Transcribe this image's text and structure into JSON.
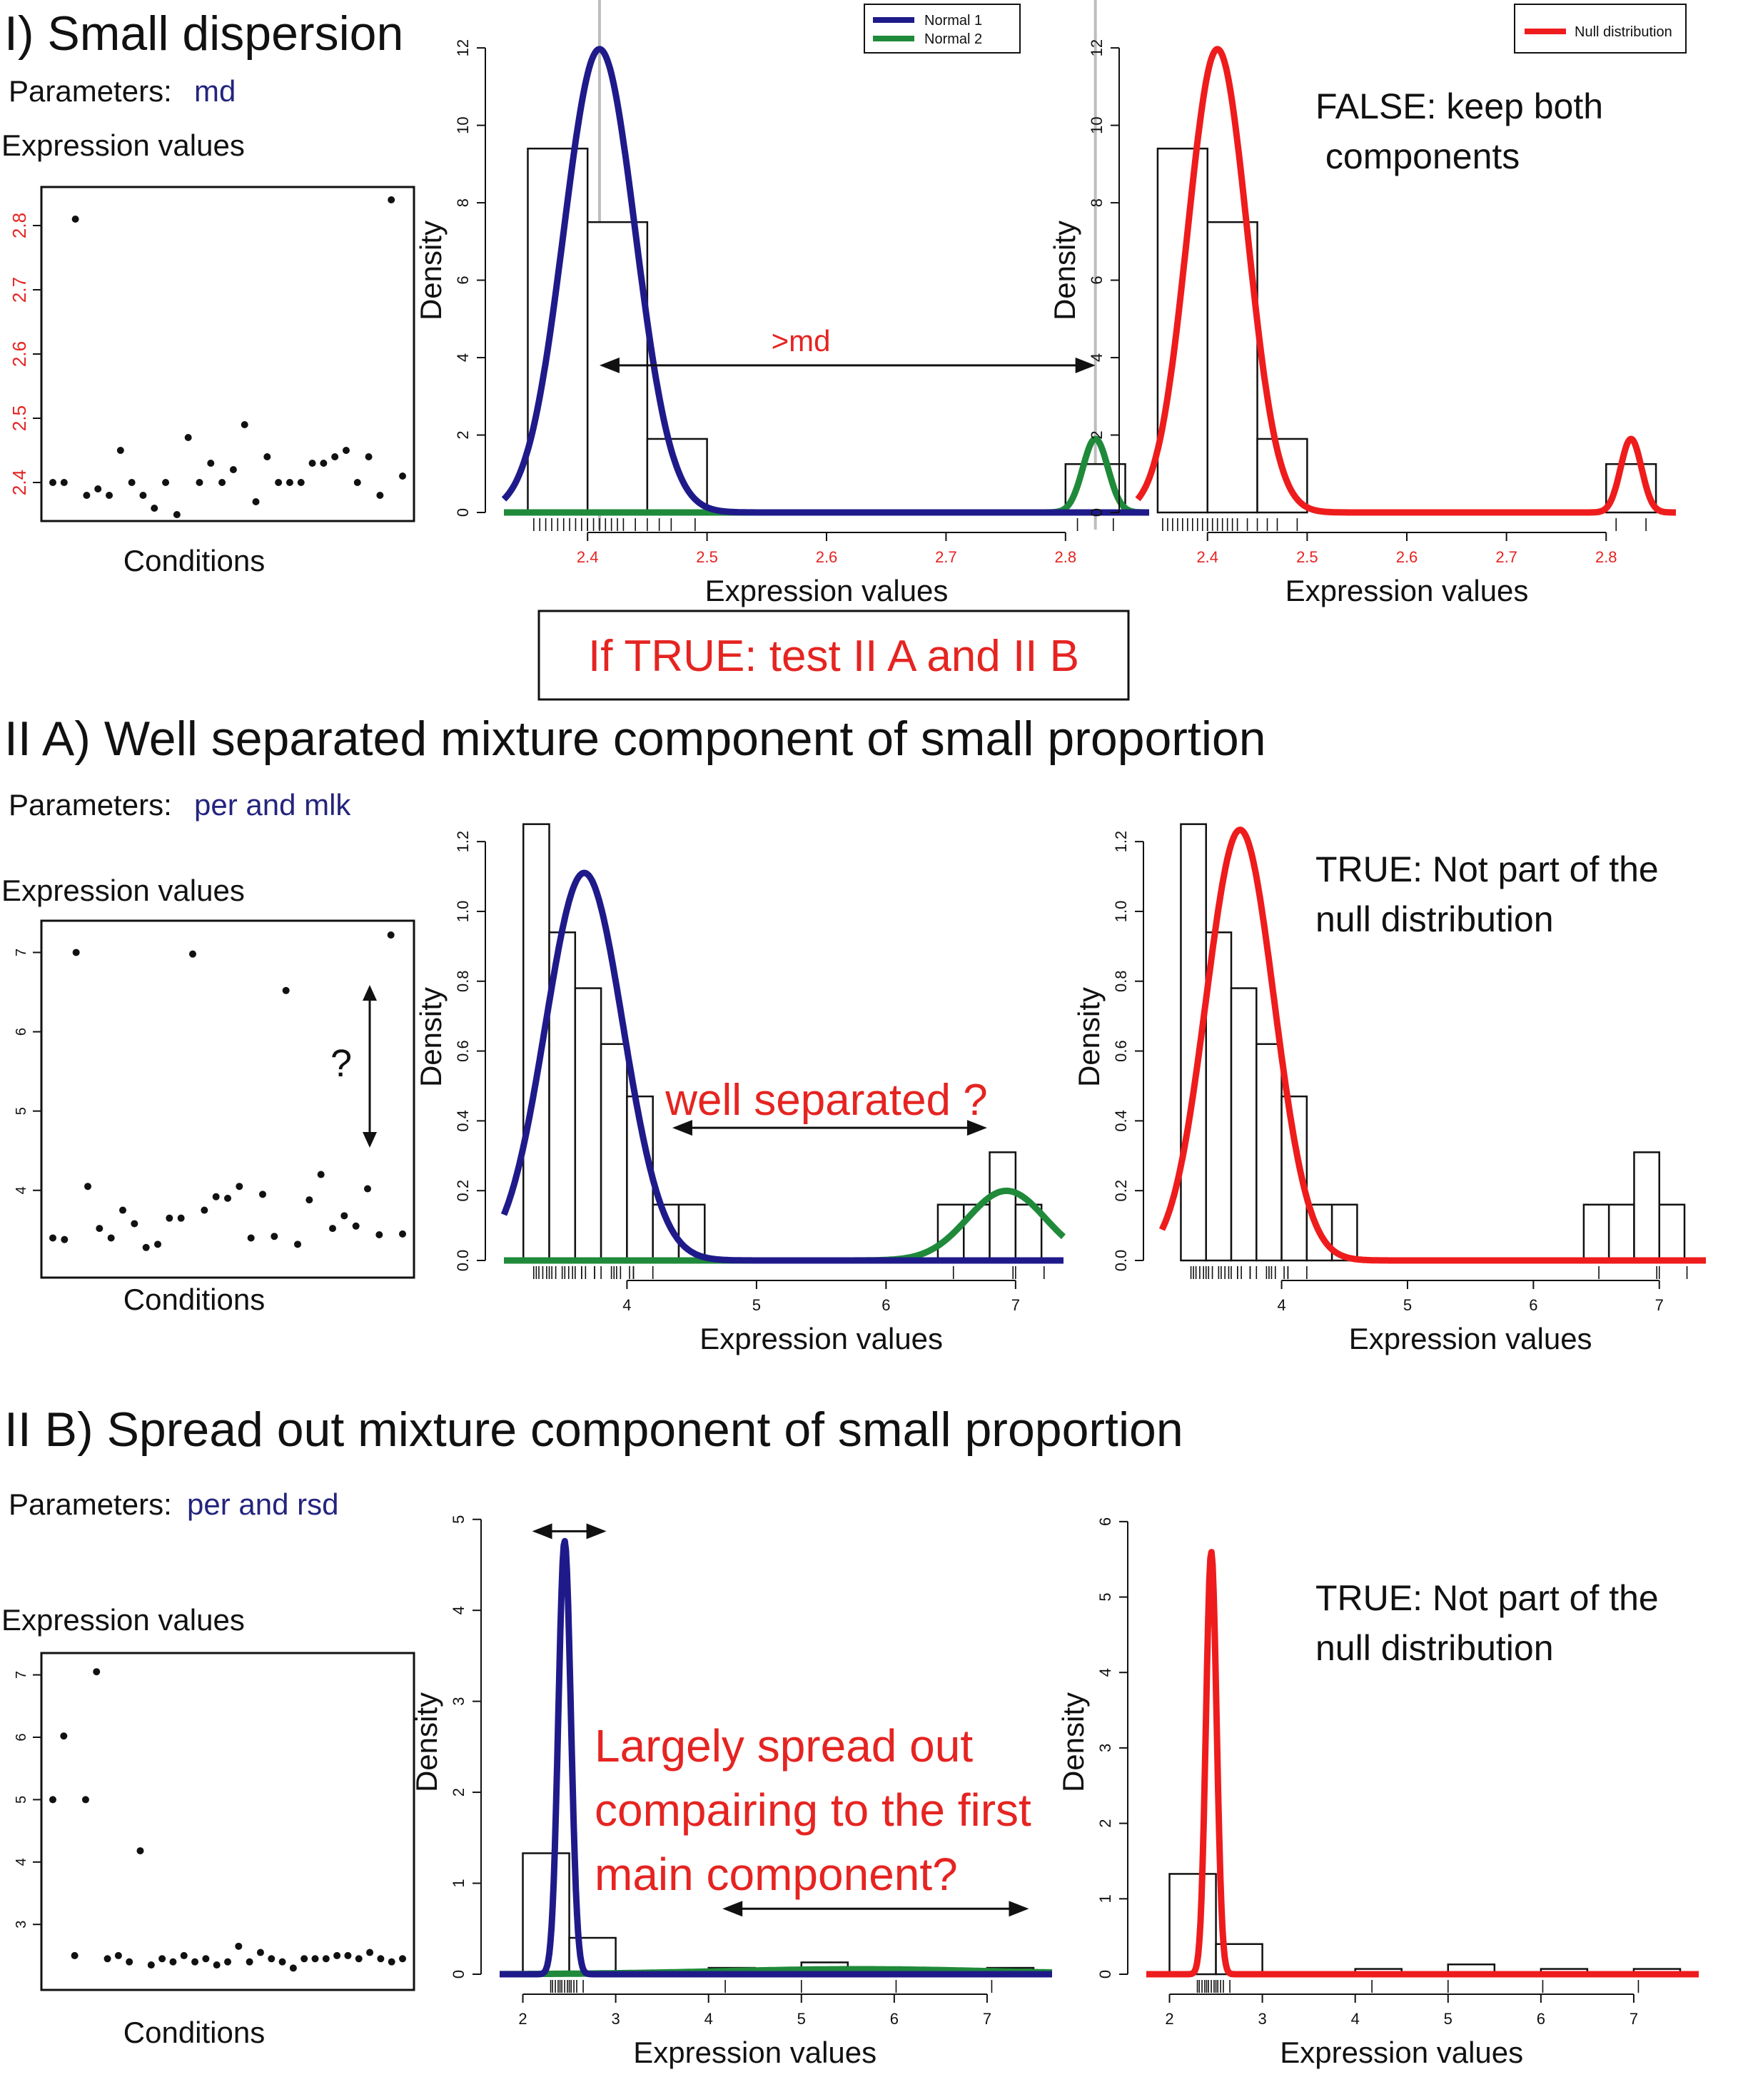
{
  "colors": {
    "normal1": "#1f1a8a",
    "normal2": "#1f8a3a",
    "null": "#ee1c1c",
    "annotation": "#e52421",
    "param_value": "#24247e",
    "axis_red": "#e52421",
    "vline": "#bdbdbd",
    "text": "#111111"
  },
  "section1": {
    "title": "I) Small dispersion",
    "params_label": "Parameters:",
    "params_value": "md",
    "scatter_title": "Expression values",
    "scatter_xlabel": "Conditions",
    "result": [
      "FALSE: keep both",
      " components"
    ],
    "md_label": ">md",
    "test_box": "If TRUE: test II A and II B"
  },
  "section2": {
    "title": "II A) Well separated mixture component of small proportion",
    "params_label": "Parameters:",
    "params_value": "per and mlk",
    "scatter_title": "Expression values",
    "scatter_xlabel": "Conditions",
    "question": "?",
    "well_label": "well separated ?",
    "result": [
      "TRUE: Not part of the",
      "null distribution"
    ]
  },
  "section3": {
    "title": "II B) Spread out mixture component of small proportion",
    "params_label": "Parameters:",
    "params_value": "per and rsd",
    "scatter_title": "Expression values",
    "scatter_xlabel": "Conditions",
    "spread_label": [
      "Largely spread out",
      "compairing to the first",
      "main component?"
    ],
    "result": [
      "TRUE: Not part of the",
      "null distribution"
    ]
  },
  "legend_mix": [
    "Normal 1",
    "Normal 2"
  ],
  "legend_null": [
    "Null distribution"
  ],
  "chart_data": [
    {
      "id": "s1_scatter",
      "type": "scatter",
      "section": 1,
      "xlabel": "Conditions",
      "ylabel": "Expression values",
      "ylim": [
        2.34,
        2.86
      ],
      "yticks": [
        2.4,
        2.5,
        2.6,
        2.7,
        2.8
      ],
      "y": [
        2.4,
        2.4,
        2.81,
        2.38,
        2.39,
        2.38,
        2.45,
        2.4,
        2.38,
        2.36,
        2.4,
        2.35,
        2.47,
        2.4,
        2.43,
        2.4,
        2.42,
        2.49,
        2.37,
        2.44,
        2.4,
        2.4,
        2.4,
        2.43,
        2.43,
        2.44,
        2.45,
        2.4,
        2.44,
        2.38,
        2.84,
        2.41
      ]
    },
    {
      "id": "s1_mix",
      "type": "histogram",
      "section": 1,
      "legend": "mix",
      "xlabel": "Expression values",
      "ylabel": "Density",
      "xlim": [
        2.33,
        2.87
      ],
      "ylim": [
        0,
        12.5
      ],
      "xticks": [
        2.4,
        2.5,
        2.6,
        2.7,
        2.8
      ],
      "yticks": [
        0,
        2,
        4,
        6,
        8,
        10,
        12
      ],
      "bins": [
        [
          2.35,
          2.4,
          9.4
        ],
        [
          2.4,
          2.45,
          7.5
        ],
        [
          2.45,
          2.5,
          1.9
        ],
        [
          2.8,
          2.85,
          1.25
        ]
      ],
      "series": [
        {
          "name": "Normal 1",
          "mu": 2.41,
          "sd": 0.03,
          "weight": 0.9
        },
        {
          "name": "Normal 2",
          "mu": 2.825,
          "sd": 0.0105,
          "weight": 0.05
        }
      ],
      "vlines": [
        2.41,
        2.825
      ],
      "arrow": [
        2.41,
        2.825,
        3.8
      ],
      "rug": [
        2.355,
        2.36,
        2.365,
        2.37,
        2.375,
        2.38,
        2.385,
        2.39,
        2.395,
        2.4,
        2.4,
        2.4,
        2.405,
        2.41,
        2.415,
        2.42,
        2.425,
        2.43,
        2.44,
        2.45,
        2.46,
        2.47,
        2.49,
        2.81,
        2.84
      ]
    },
    {
      "id": "s1_null",
      "type": "histogram",
      "section": 1,
      "legend": "null",
      "xlabel": "Expression values",
      "ylabel": "Density",
      "xlim": [
        2.33,
        2.87
      ],
      "ylim": [
        0,
        12.5
      ],
      "xticks": [
        2.4,
        2.5,
        2.6,
        2.7,
        2.8
      ],
      "yticks": [
        0,
        2,
        4,
        6,
        8,
        10,
        12
      ],
      "bins": [
        [
          2.35,
          2.4,
          9.4
        ],
        [
          2.4,
          2.45,
          7.5
        ],
        [
          2.45,
          2.5,
          1.9
        ],
        [
          2.8,
          2.85,
          1.25
        ]
      ],
      "series": [
        {
          "name": "Null distribution",
          "mu": 2.41,
          "sd": 0.03,
          "weight": 0.9
        },
        {
          "name": "Null distribution",
          "mu": 2.825,
          "sd": 0.0105,
          "weight": 0.05
        }
      ],
      "rug": [
        2.355,
        2.36,
        2.365,
        2.37,
        2.375,
        2.38,
        2.385,
        2.39,
        2.395,
        2.4,
        2.4,
        2.4,
        2.405,
        2.41,
        2.415,
        2.42,
        2.425,
        2.43,
        2.44,
        2.45,
        2.46,
        2.47,
        2.49,
        2.81,
        2.84
      ]
    },
    {
      "id": "s2_scatter",
      "type": "scatter",
      "section": 2,
      "xlabel": "Conditions",
      "ylabel": "Expression values",
      "ylim": [
        2.9,
        7.4
      ],
      "yticks": [
        4,
        5,
        6,
        7
      ],
      "y": [
        3.4,
        3.38,
        7.0,
        4.05,
        3.52,
        3.4,
        3.75,
        3.58,
        3.28,
        3.32,
        3.65,
        3.65,
        6.98,
        3.75,
        3.92,
        3.9,
        4.05,
        3.4,
        3.95,
        3.42,
        6.52,
        3.32,
        3.88,
        4.2,
        3.52,
        3.68,
        3.55,
        4.02,
        3.44,
        7.22,
        3.45
      ]
    },
    {
      "id": "s2_mix",
      "type": "histogram",
      "section": 2,
      "legend": "mix",
      "xlabel": "Expression values",
      "ylabel": "Density",
      "xlim": [
        3.05,
        7.37
      ],
      "ylim": [
        0,
        1.28
      ],
      "xticks": [
        4,
        5,
        6,
        7
      ],
      "yticks": [
        0.0,
        0.2,
        0.4,
        0.6,
        0.8,
        1.0,
        1.2
      ],
      "bins": [
        [
          3.2,
          3.4,
          1.25
        ],
        [
          3.4,
          3.6,
          0.94
        ],
        [
          3.6,
          3.8,
          0.78
        ],
        [
          3.8,
          4.0,
          0.62
        ],
        [
          4.0,
          4.2,
          0.47
        ],
        [
          4.2,
          4.4,
          0.16
        ],
        [
          4.4,
          4.6,
          0.16
        ],
        [
          6.4,
          6.6,
          0.16
        ],
        [
          6.6,
          6.8,
          0.16
        ],
        [
          6.8,
          7.0,
          0.31
        ],
        [
          7.0,
          7.2,
          0.16
        ]
      ],
      "series": [
        {
          "name": "Normal 1",
          "mu": 3.67,
          "sd": 0.3,
          "weight": 0.835
        },
        {
          "name": "Normal 2",
          "mu": 6.93,
          "sd": 0.3,
          "weight": 0.15
        }
      ],
      "arrow": [
        4.35,
        6.78,
        0.38
      ],
      "rug": [
        3.28,
        3.3,
        3.32,
        3.35,
        3.38,
        3.4,
        3.42,
        3.45,
        3.5,
        3.52,
        3.55,
        3.58,
        3.6,
        3.65,
        3.65,
        3.68,
        3.75,
        3.75,
        3.8,
        3.88,
        3.9,
        3.92,
        3.95,
        4.02,
        4.05,
        4.05,
        4.2,
        6.52,
        6.98,
        7.0,
        7.22
      ]
    },
    {
      "id": "s2_null",
      "type": "histogram",
      "section": 2,
      "legend": "none",
      "xlabel": "Expression values",
      "ylabel": "Density",
      "xlim": [
        3.05,
        7.37
      ],
      "ylim": [
        0,
        1.28
      ],
      "xticks": [
        4,
        5,
        6,
        7
      ],
      "yticks": [
        0.0,
        0.2,
        0.4,
        0.6,
        0.8,
        1.0,
        1.2
      ],
      "bins": [
        [
          3.2,
          3.4,
          1.25
        ],
        [
          3.4,
          3.6,
          0.94
        ],
        [
          3.6,
          3.8,
          0.78
        ],
        [
          3.8,
          4.0,
          0.62
        ],
        [
          4.0,
          4.2,
          0.47
        ],
        [
          4.2,
          4.4,
          0.16
        ],
        [
          4.4,
          4.6,
          0.16
        ],
        [
          6.4,
          6.6,
          0.16
        ],
        [
          6.6,
          6.8,
          0.16
        ],
        [
          6.8,
          7.0,
          0.31
        ],
        [
          7.0,
          7.2,
          0.16
        ]
      ],
      "series": [
        {
          "name": "Null distribution",
          "mu": 3.67,
          "sd": 0.27,
          "weight": 0.835
        }
      ],
      "rug": [
        3.28,
        3.3,
        3.32,
        3.35,
        3.38,
        3.4,
        3.42,
        3.45,
        3.5,
        3.52,
        3.55,
        3.58,
        3.6,
        3.65,
        3.65,
        3.68,
        3.75,
        3.75,
        3.8,
        3.88,
        3.9,
        3.92,
        3.95,
        4.02,
        4.05,
        4.05,
        4.2,
        6.52,
        6.98,
        7.0,
        7.22
      ]
    },
    {
      "id": "s3_scatter",
      "type": "scatter",
      "section": 3,
      "xlabel": "Conditions",
      "ylabel": "Expression values",
      "ylim": [
        1.95,
        7.35
      ],
      "yticks": [
        3,
        4,
        5,
        6,
        7
      ],
      "y": [
        5.0,
        6.02,
        2.5,
        5.0,
        7.05,
        2.45,
        2.5,
        2.4,
        4.18,
        2.35,
        2.45,
        2.4,
        2.5,
        2.4,
        2.45,
        2.35,
        2.4,
        2.65,
        2.4,
        2.55,
        2.45,
        2.4,
        2.3,
        2.45,
        2.45,
        2.45,
        2.5,
        2.5,
        2.45,
        2.55,
        2.45,
        2.4,
        2.45
      ]
    },
    {
      "id": "s3_mix",
      "type": "histogram",
      "section": 3,
      "legend": "none",
      "xlabel": "Expression values",
      "ylabel": "Density",
      "xlim": [
        1.75,
        7.7
      ],
      "ylim": [
        0,
        5.1
      ],
      "xticks": [
        2,
        3,
        4,
        5,
        6,
        7
      ],
      "yticks": [
        0,
        1,
        2,
        3,
        4,
        5
      ],
      "bins": [
        [
          2.0,
          2.5,
          1.33
        ],
        [
          2.5,
          3.0,
          0.4
        ],
        [
          4.0,
          4.5,
          0.07
        ],
        [
          5.0,
          5.5,
          0.13
        ],
        [
          6.0,
          6.5,
          0.07
        ],
        [
          7.0,
          7.5,
          0.07
        ]
      ],
      "series": [
        {
          "name": "Normal 1",
          "mu": 2.45,
          "sd": 0.067,
          "weight": 0.8
        },
        {
          "name": "Normal 2",
          "mu": 5.6,
          "sd": 1.45,
          "weight": 0.2
        }
      ],
      "arrow": [
        4.15,
        7.45,
        0.72
      ],
      "arrow_top": [
        2.1,
        2.9,
        4.87
      ],
      "rug": [
        2.3,
        2.32,
        2.35,
        2.38,
        2.4,
        2.42,
        2.45,
        2.48,
        2.5,
        2.52,
        2.55,
        2.58,
        2.65,
        4.18,
        5.0,
        6.02,
        7.05
      ]
    },
    {
      "id": "s3_null",
      "type": "histogram",
      "section": 3,
      "legend": "none",
      "xlabel": "Expression values",
      "ylabel": "Density",
      "xlim": [
        1.75,
        7.7
      ],
      "ylim": [
        0,
        6.15
      ],
      "xticks": [
        2,
        3,
        4,
        5,
        6,
        7
      ],
      "yticks": [
        0,
        1,
        2,
        3,
        4,
        5,
        6
      ],
      "bins": [
        [
          2.0,
          2.5,
          1.33
        ],
        [
          2.5,
          3.0,
          0.4
        ],
        [
          4.0,
          4.5,
          0.07
        ],
        [
          5.0,
          5.5,
          0.13
        ],
        [
          6.0,
          6.5,
          0.07
        ],
        [
          7.0,
          7.5,
          0.07
        ]
      ],
      "series": [
        {
          "name": "Null distribution",
          "mu": 2.45,
          "sd": 0.057,
          "weight": 0.8
        }
      ],
      "rug": [
        2.3,
        2.32,
        2.35,
        2.38,
        2.4,
        2.42,
        2.45,
        2.48,
        2.5,
        2.52,
        2.55,
        2.58,
        2.65,
        4.18,
        5.0,
        6.02,
        7.05
      ]
    }
  ]
}
